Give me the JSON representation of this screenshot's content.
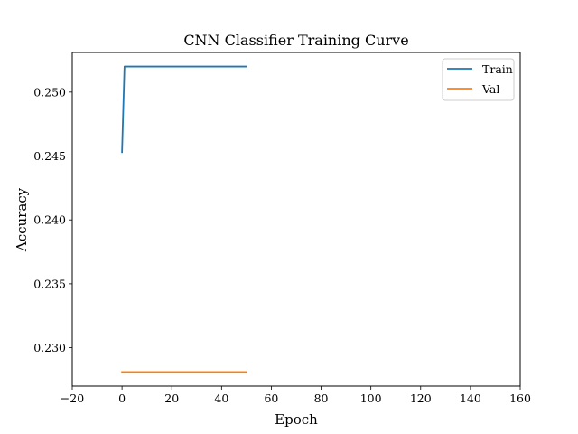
{
  "chart_data": {
    "type": "line",
    "title": "CNN Classifier Training Curve",
    "xlabel": "Epoch",
    "ylabel": "Accuracy",
    "xlim": [
      -20,
      160
    ],
    "ylim": [
      0.227,
      0.2531
    ],
    "x_ticks": [
      -20,
      0,
      20,
      40,
      60,
      80,
      100,
      120,
      140,
      160
    ],
    "x_tick_labels": [
      "−20",
      "0",
      "20",
      "40",
      "60",
      "80",
      "100",
      "120",
      "140",
      "160"
    ],
    "y_ticks": [
      0.23,
      0.235,
      0.24,
      0.245,
      0.25
    ],
    "y_tick_labels": [
      "0.230",
      "0.235",
      "0.240",
      "0.245",
      "0.250"
    ],
    "grid": false,
    "legend": {
      "position": "top-right"
    },
    "series": [
      {
        "name": "Train",
        "color": "#1f77b4",
        "x": [
          0,
          1,
          50
        ],
        "y": [
          0.2453,
          0.252,
          0.252
        ]
      },
      {
        "name": "Val",
        "color": "#ff7f0e",
        "x": [
          0,
          50
        ],
        "y": [
          0.2281,
          0.2281
        ]
      }
    ]
  }
}
